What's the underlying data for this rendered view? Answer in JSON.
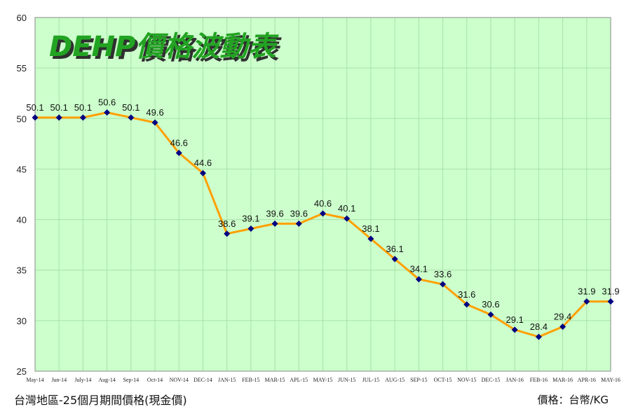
{
  "chart_data": {
    "type": "line",
    "title": "DEHP價格波動表",
    "xlabel": "",
    "ylabel": "",
    "ylim": [
      25,
      60
    ],
    "yticks": [
      25,
      30,
      35,
      40,
      45,
      50,
      55,
      60
    ],
    "grid": true,
    "categories": [
      "May-14",
      "Jun-14",
      "July-14",
      "Aug-14",
      "Sep-14",
      "Oct-14",
      "NOV-14",
      "DEC-14",
      "JAN-15",
      "FEB-15",
      "MAR-15",
      "APL-15",
      "MAY-15",
      "JUN-15",
      "JUL-15",
      "AUG-15",
      "SEP-15",
      "OCT-15",
      "NOV-15",
      "DEC-15",
      "JAN-16",
      "FEB-16",
      "MAR-16",
      "APR-16",
      "MAY-16"
    ],
    "values": [
      50.1,
      50.1,
      50.1,
      50.6,
      50.1,
      49.6,
      46.6,
      44.6,
      38.6,
      39.1,
      39.6,
      39.6,
      40.6,
      40.1,
      38.1,
      36.1,
      34.1,
      33.6,
      31.6,
      30.6,
      29.1,
      28.4,
      29.4,
      31.9,
      31.9
    ],
    "data_labels": [
      "50.1",
      "50.1",
      "50.1",
      "50.6",
      "50.1",
      "49.6",
      "46.6",
      "44.6",
      "38.6",
      "39.1",
      "39.6",
      "39.6",
      "40.6",
      "40.1",
      "38.1",
      "36.1",
      "34.1",
      "33.6",
      "31.6",
      "30.6",
      "29.1",
      "28.4",
      "29.4",
      "31.9",
      "31.9"
    ]
  },
  "colors": {
    "plot_bg": "#ccffcc",
    "grid": "#a8e0a8",
    "line": "#ffa000",
    "marker": "#000080",
    "title_fill": "#22a322",
    "title_shadow": "#2f2f2f"
  },
  "footer": {
    "left_note": "台灣地區-25個月期間價格(現金價)",
    "right_note": "價格：台幣/KG"
  }
}
